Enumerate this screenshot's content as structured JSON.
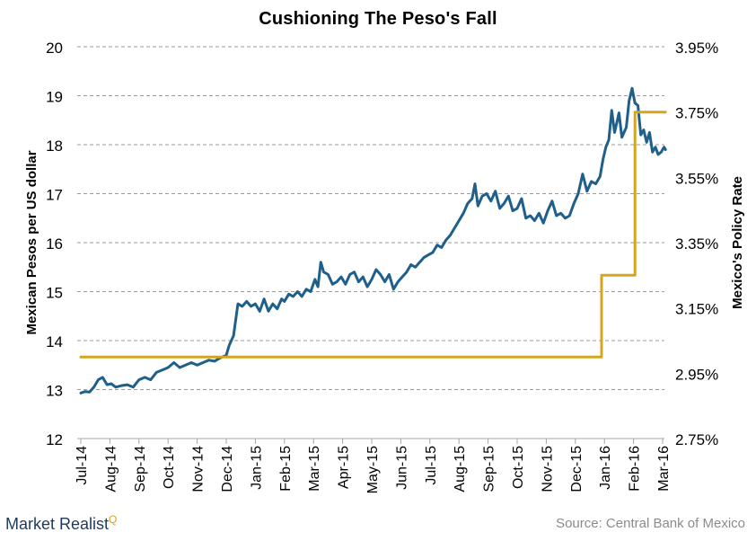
{
  "chart_data": {
    "type": "line",
    "title": "Cushioning  The Peso's Fall",
    "ylabel_left": "Mexican Pesos per US dollar",
    "ylabel_right": "Mexico's Policy Rate",
    "ylim_left": [
      12,
      20
    ],
    "ylim_right": [
      2.75,
      3.95
    ],
    "yticks_left": [
      "12",
      "13",
      "14",
      "15",
      "16",
      "17",
      "18",
      "19",
      "20"
    ],
    "yticks_right": [
      "2.75%",
      "2.95%",
      "3.15%",
      "3.35%",
      "3.55%",
      "3.75%",
      "3.95%"
    ],
    "x_categories": [
      "Jul-14",
      "Aug-14",
      "Sep-14",
      "Oct-14",
      "Nov-14",
      "Dec-14",
      "Jan-15",
      "Feb-15",
      "Mar-15",
      "Apr-15",
      "May-15",
      "Jun-15",
      "Jul-15",
      "Aug-15",
      "Sep-15",
      "Oct-15",
      "Nov-15",
      "Dec-15",
      "Jan-16",
      "Feb-16",
      "Mar-16"
    ],
    "grid": true,
    "series": [
      {
        "axis": "left",
        "color": "#1f5f8b",
        "points": [
          [
            0.0,
            12.93
          ],
          [
            0.15,
            12.96
          ],
          [
            0.3,
            12.95
          ],
          [
            0.45,
            13.05
          ],
          [
            0.6,
            13.2
          ],
          [
            0.75,
            13.25
          ],
          [
            0.9,
            13.1
          ],
          [
            1.05,
            13.12
          ],
          [
            1.2,
            13.05
          ],
          [
            1.4,
            13.08
          ],
          [
            1.6,
            13.1
          ],
          [
            1.8,
            13.05
          ],
          [
            2.0,
            13.2
          ],
          [
            2.2,
            13.25
          ],
          [
            2.4,
            13.2
          ],
          [
            2.6,
            13.35
          ],
          [
            2.8,
            13.4
          ],
          [
            3.0,
            13.45
          ],
          [
            3.2,
            13.55
          ],
          [
            3.4,
            13.45
          ],
          [
            3.6,
            13.5
          ],
          [
            3.8,
            13.55
          ],
          [
            4.0,
            13.5
          ],
          [
            4.2,
            13.55
          ],
          [
            4.4,
            13.6
          ],
          [
            4.6,
            13.58
          ],
          [
            4.8,
            13.65
          ],
          [
            5.0,
            13.7
          ],
          [
            5.1,
            13.9
          ],
          [
            5.25,
            14.1
          ],
          [
            5.4,
            14.75
          ],
          [
            5.55,
            14.7
          ],
          [
            5.7,
            14.8
          ],
          [
            5.85,
            14.7
          ],
          [
            6.0,
            14.75
          ],
          [
            6.15,
            14.6
          ],
          [
            6.3,
            14.85
          ],
          [
            6.45,
            14.6
          ],
          [
            6.6,
            14.75
          ],
          [
            6.75,
            14.65
          ],
          [
            6.9,
            14.85
          ],
          [
            7.0,
            14.8
          ],
          [
            7.15,
            14.95
          ],
          [
            7.3,
            14.9
          ],
          [
            7.45,
            15.0
          ],
          [
            7.6,
            14.9
          ],
          [
            7.75,
            15.05
          ],
          [
            7.9,
            15.0
          ],
          [
            8.05,
            15.25
          ],
          [
            8.15,
            15.1
          ],
          [
            8.25,
            15.6
          ],
          [
            8.35,
            15.4
          ],
          [
            8.5,
            15.35
          ],
          [
            8.65,
            15.15
          ],
          [
            8.8,
            15.2
          ],
          [
            8.95,
            15.3
          ],
          [
            9.1,
            15.15
          ],
          [
            9.25,
            15.35
          ],
          [
            9.4,
            15.4
          ],
          [
            9.55,
            15.2
          ],
          [
            9.7,
            15.3
          ],
          [
            9.85,
            15.1
          ],
          [
            10.0,
            15.25
          ],
          [
            10.15,
            15.45
          ],
          [
            10.3,
            15.35
          ],
          [
            10.45,
            15.2
          ],
          [
            10.6,
            15.35
          ],
          [
            10.75,
            15.05
          ],
          [
            10.9,
            15.2
          ],
          [
            11.05,
            15.3
          ],
          [
            11.2,
            15.4
          ],
          [
            11.35,
            15.55
          ],
          [
            11.5,
            15.5
          ],
          [
            11.65,
            15.6
          ],
          [
            11.8,
            15.7
          ],
          [
            11.95,
            15.75
          ],
          [
            12.1,
            15.8
          ],
          [
            12.25,
            15.95
          ],
          [
            12.4,
            15.9
          ],
          [
            12.55,
            16.05
          ],
          [
            12.7,
            16.15
          ],
          [
            12.85,
            16.3
          ],
          [
            13.0,
            16.45
          ],
          [
            13.15,
            16.6
          ],
          [
            13.3,
            16.8
          ],
          [
            13.45,
            16.9
          ],
          [
            13.55,
            17.2
          ],
          [
            13.65,
            16.75
          ],
          [
            13.8,
            16.95
          ],
          [
            13.95,
            17.0
          ],
          [
            14.1,
            16.85
          ],
          [
            14.25,
            17.05
          ],
          [
            14.4,
            16.7
          ],
          [
            14.55,
            16.8
          ],
          [
            14.7,
            16.95
          ],
          [
            14.85,
            16.65
          ],
          [
            15.0,
            16.7
          ],
          [
            15.15,
            16.9
          ],
          [
            15.3,
            16.5
          ],
          [
            15.45,
            16.55
          ],
          [
            15.6,
            16.45
          ],
          [
            15.75,
            16.6
          ],
          [
            15.9,
            16.4
          ],
          [
            16.05,
            16.65
          ],
          [
            16.2,
            16.85
          ],
          [
            16.35,
            16.55
          ],
          [
            16.5,
            16.6
          ],
          [
            16.65,
            16.5
          ],
          [
            16.8,
            16.55
          ],
          [
            16.95,
            16.8
          ],
          [
            17.1,
            17.0
          ],
          [
            17.25,
            17.4
          ],
          [
            17.4,
            17.05
          ],
          [
            17.55,
            17.25
          ],
          [
            17.7,
            17.2
          ],
          [
            17.85,
            17.35
          ],
          [
            17.95,
            17.7
          ],
          [
            18.05,
            17.95
          ],
          [
            18.15,
            18.1
          ],
          [
            18.25,
            18.7
          ],
          [
            18.35,
            18.25
          ],
          [
            18.5,
            18.65
          ],
          [
            18.6,
            18.15
          ],
          [
            18.75,
            18.35
          ],
          [
            18.85,
            18.9
          ],
          [
            18.95,
            19.15
          ],
          [
            19.05,
            18.85
          ],
          [
            19.15,
            18.8
          ],
          [
            19.25,
            18.2
          ],
          [
            19.35,
            18.3
          ],
          [
            19.45,
            18.05
          ],
          [
            19.55,
            18.25
          ],
          [
            19.65,
            17.85
          ],
          [
            19.75,
            17.95
          ],
          [
            19.85,
            17.8
          ],
          [
            19.95,
            17.85
          ],
          [
            20.05,
            17.95
          ],
          [
            20.1,
            17.9
          ]
        ]
      },
      {
        "axis": "right",
        "color": "#d4a521",
        "points": [
          [
            0.0,
            3.0
          ],
          [
            17.9,
            3.0
          ],
          [
            17.9,
            3.25
          ],
          [
            19.05,
            3.25
          ],
          [
            19.05,
            3.75
          ],
          [
            20.1,
            3.75
          ]
        ]
      }
    ]
  },
  "brand": {
    "name": "Market Realist",
    "mark": "Q"
  },
  "source": "Source: Central Bank of Mexico"
}
